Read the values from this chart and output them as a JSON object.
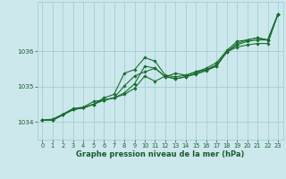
{
  "background_color": "#cce8ec",
  "grid_color": "#99cccc",
  "line_color": "#1a6e2e",
  "marker_color": "#1a6e2e",
  "text_color": "#1a5c2e",
  "xlabel": "Graphe pression niveau de la mer (hPa)",
  "ylim": [
    1033.5,
    1037.4
  ],
  "xlim": [
    -0.5,
    23.5
  ],
  "yticks": [
    1034,
    1035,
    1036
  ],
  "xticks": [
    0,
    1,
    2,
    3,
    4,
    5,
    6,
    7,
    8,
    9,
    10,
    11,
    12,
    13,
    14,
    15,
    16,
    17,
    18,
    19,
    20,
    21,
    22,
    23
  ],
  "series": [
    [
      1034.05,
      1034.05,
      1034.2,
      1034.35,
      1034.4,
      1034.5,
      1034.62,
      1034.68,
      1034.78,
      1034.95,
      1035.3,
      1035.15,
      1035.3,
      1035.22,
      1035.28,
      1035.35,
      1035.45,
      1035.58,
      1035.98,
      1036.12,
      1036.18,
      1036.22,
      1036.22,
      1037.05
    ],
    [
      1034.05,
      1034.05,
      1034.2,
      1034.35,
      1034.4,
      1034.5,
      1034.62,
      1034.68,
      1035.02,
      1035.3,
      1035.42,
      1035.52,
      1035.28,
      1035.22,
      1035.28,
      1035.38,
      1035.48,
      1035.58,
      1035.98,
      1036.18,
      1036.28,
      1036.32,
      1036.32,
      1037.05
    ],
    [
      1034.05,
      1034.05,
      1034.2,
      1034.35,
      1034.4,
      1034.5,
      1034.68,
      1034.78,
      1035.38,
      1035.48,
      1035.82,
      1035.72,
      1035.32,
      1035.28,
      1035.32,
      1035.42,
      1035.48,
      1035.62,
      1035.98,
      1036.22,
      1036.32,
      1036.38,
      1036.32,
      1037.05
    ],
    [
      1034.05,
      1034.08,
      1034.22,
      1034.38,
      1034.42,
      1034.58,
      1034.62,
      1034.68,
      1034.82,
      1035.08,
      1035.58,
      1035.52,
      1035.28,
      1035.38,
      1035.32,
      1035.42,
      1035.52,
      1035.68,
      1036.02,
      1036.28,
      1036.32,
      1036.38,
      1036.32,
      1037.05
    ]
  ]
}
